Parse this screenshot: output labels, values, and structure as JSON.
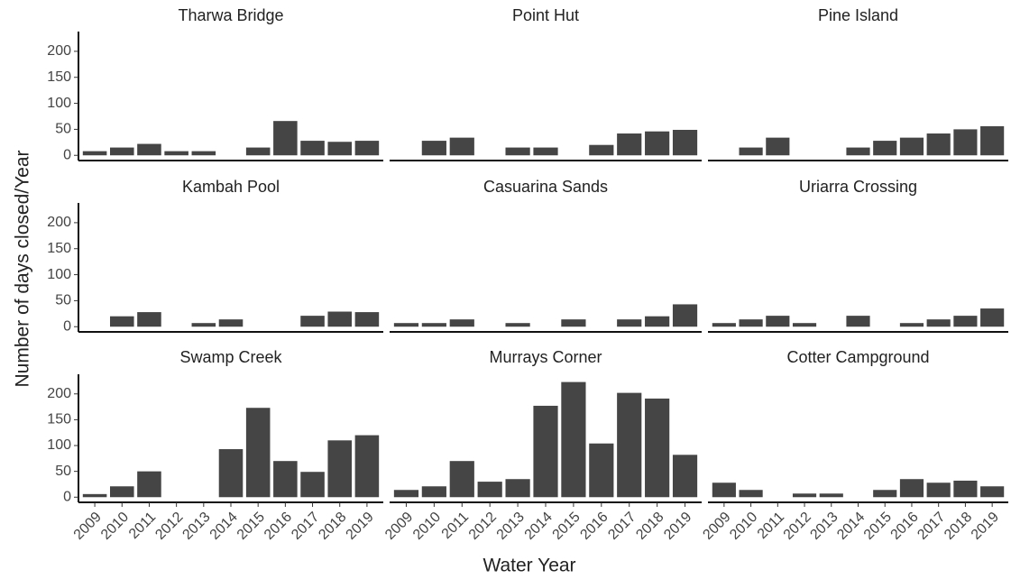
{
  "y_label": "Number of days closed/Year",
  "x_label": "Water Year",
  "chart_data": [
    {
      "type": "bar",
      "title": "Tharwa Bridge",
      "categories": [
        "2009",
        "2010",
        "2011",
        "2012",
        "2013",
        "2014",
        "2015",
        "2016",
        "2017",
        "2018",
        "2019"
      ],
      "values": [
        8,
        15,
        22,
        8,
        8,
        null,
        15,
        66,
        28,
        26,
        28
      ],
      "color": "#454545",
      "ylim": [
        -10,
        238
      ],
      "yticks": [
        0,
        50,
        100,
        150,
        200
      ]
    },
    {
      "type": "bar",
      "title": "Point Hut",
      "categories": [
        "2009",
        "2010",
        "2011",
        "2012",
        "2013",
        "2014",
        "2015",
        "2016",
        "2017",
        "2018",
        "2019"
      ],
      "values": [
        null,
        28,
        34,
        null,
        15,
        15,
        null,
        20,
        42,
        46,
        49
      ],
      "color": "#454545",
      "ylim": [
        -10,
        238
      ]
    },
    {
      "type": "bar",
      "title": "Pine Island",
      "categories": [
        "2009",
        "2010",
        "2011",
        "2012",
        "2013",
        "2014",
        "2015",
        "2016",
        "2017",
        "2018",
        "2019"
      ],
      "values": [
        null,
        15,
        34,
        null,
        null,
        15,
        28,
        34,
        42,
        50,
        56
      ],
      "color": "#454545",
      "ylim": [
        -10,
        238
      ]
    },
    {
      "type": "bar",
      "title": "Kambah Pool",
      "categories": [
        "2009",
        "2010",
        "2011",
        "2012",
        "2013",
        "2014",
        "2015",
        "2016",
        "2017",
        "2018",
        "2019"
      ],
      "values": [
        null,
        20,
        28,
        null,
        7,
        14,
        null,
        null,
        21,
        29,
        28
      ],
      "color": "#454545",
      "ylim": [
        -10,
        238
      ],
      "yticks": [
        0,
        50,
        100,
        150,
        200
      ]
    },
    {
      "type": "bar",
      "title": "Casuarina Sands",
      "categories": [
        "2009",
        "2010",
        "2011",
        "2012",
        "2013",
        "2014",
        "2015",
        "2016",
        "2017",
        "2018",
        "2019"
      ],
      "values": [
        7,
        7,
        14,
        null,
        7,
        null,
        14,
        null,
        14,
        20,
        43
      ],
      "color": "#454545",
      "ylim": [
        -10,
        238
      ]
    },
    {
      "type": "bar",
      "title": "Uriarra Crossing",
      "categories": [
        "2009",
        "2010",
        "2011",
        "2012",
        "2013",
        "2014",
        "2015",
        "2016",
        "2017",
        "2018",
        "2019"
      ],
      "values": [
        7,
        14,
        21,
        7,
        null,
        21,
        null,
        7,
        14,
        21,
        35
      ],
      "color": "#454545",
      "ylim": [
        -10,
        238
      ]
    },
    {
      "type": "bar",
      "title": "Swamp Creek",
      "categories": [
        "2009",
        "2010",
        "2011",
        "2012",
        "2013",
        "2014",
        "2015",
        "2016",
        "2017",
        "2018",
        "2019"
      ],
      "values": [
        6,
        21,
        50,
        null,
        null,
        93,
        173,
        70,
        49,
        110,
        120
      ],
      "color": "#454545",
      "ylim": [
        -10,
        238
      ],
      "yticks": [
        0,
        50,
        100,
        150,
        200
      ]
    },
    {
      "type": "bar",
      "title": "Murrays Corner",
      "categories": [
        "2009",
        "2010",
        "2011",
        "2012",
        "2013",
        "2014",
        "2015",
        "2016",
        "2017",
        "2018",
        "2019"
      ],
      "values": [
        14,
        21,
        70,
        30,
        35,
        177,
        223,
        104,
        202,
        191,
        82
      ],
      "color": "#454545",
      "ylim": [
        -10,
        238
      ]
    },
    {
      "type": "bar",
      "title": "Cotter Campground",
      "categories": [
        "2009",
        "2010",
        "2011",
        "2012",
        "2013",
        "2014",
        "2015",
        "2016",
        "2017",
        "2018",
        "2019"
      ],
      "values": [
        28,
        14,
        null,
        7,
        7,
        null,
        14,
        35,
        28,
        32,
        21
      ],
      "color": "#454545",
      "ylim": [
        -10,
        238
      ]
    }
  ]
}
